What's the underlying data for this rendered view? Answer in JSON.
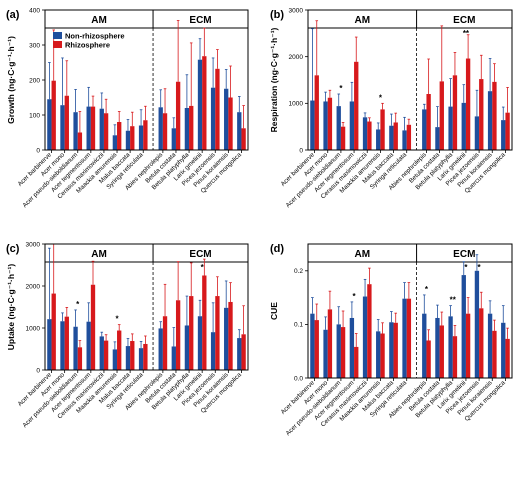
{
  "chart_data": [
    {
      "type": "bar",
      "panel_label": "(a)",
      "ylabel": "Growth (ng·C·g⁻¹·h⁻¹)",
      "ylim": [
        0,
        400
      ],
      "yticks": [
        "0",
        "100",
        "200",
        "300",
        "400"
      ],
      "groups": [
        {
          "label": "AM",
          "start": 0,
          "end": 8
        },
        {
          "label": "ECM",
          "start": 9,
          "end": 16
        }
      ],
      "legend": {
        "entries": [
          "Non-rhizosphere",
          "Rhizosphere"
        ],
        "placement": "top-left"
      },
      "categories": [
        "Acer barbinerve",
        "Acer mono",
        "Acer pseudo-sieboldianum",
        "Acer tegmentosum",
        "Cerasus maximowiczii",
        "Maackia amurensis",
        "Malus baccata",
        "Syringa reticulata",
        "Abies nephrolepis",
        "Betula costata",
        "Betula platyphylla",
        "Larix gmelinii",
        "Picea jezoensis",
        "Pinus koraiensis",
        "Quercus mongolica"
      ],
      "series": [
        {
          "name": "Non-rhizosphere",
          "color": "#1f4e9c",
          "values": [
            145,
            128,
            108,
            124,
            118,
            42,
            55,
            70,
            122,
            62,
            120,
            258,
            178,
            175,
            108
          ],
          "errors": [
            105,
            135,
            65,
            55,
            45,
            30,
            32,
            45,
            50,
            30,
            95,
            60,
            85,
            55,
            45
          ]
        },
        {
          "name": "Rhizosphere",
          "color": "#d7191c",
          "values": [
            198,
            155,
            50,
            124,
            105,
            80,
            68,
            85,
            105,
            195,
            126,
            268,
            232,
            150,
            62
          ],
          "errors": [
            145,
            100,
            60,
            30,
            40,
            30,
            40,
            40,
            70,
            175,
            180,
            80,
            55,
            90,
            65
          ]
        }
      ],
      "significance": []
    },
    {
      "type": "bar",
      "panel_label": "(b)",
      "ylabel": "Respiration (ng·C·g⁻¹·h⁻¹)",
      "ylim": [
        0,
        3000
      ],
      "yticks": [
        "0",
        "1000",
        "2000",
        "3000"
      ],
      "groups": [
        {
          "label": "AM",
          "start": 0,
          "end": 8
        },
        {
          "label": "ECM",
          "start": 9,
          "end": 16
        }
      ],
      "categories": [
        "Acer barbinerve",
        "Acer mono",
        "Acer pseudo-sieboldianum",
        "Acer tegmentosum",
        "Cerasus maximowiczii",
        "Maackia amurensis",
        "Malus baccata",
        "Syringa reticulata",
        "Abies nephrolepis",
        "Betula costata",
        "Betula platyphylla",
        "Larix gmelinii",
        "Picea jezoensis",
        "Pinus koraiensis",
        "Quercus mongolica"
      ],
      "series": [
        {
          "name": "Non-rhizosphere",
          "color": "#1f4e9c",
          "values": [
            1060,
            1040,
            940,
            1040,
            700,
            440,
            520,
            420,
            870,
            490,
            930,
            1010,
            720,
            1260,
            640
          ],
          "errors": [
            1540,
            200,
            260,
            410,
            95,
            140,
            250,
            280,
            110,
            440,
            600,
            390,
            560,
            700,
            280
          ]
        },
        {
          "name": "Rhizosphere",
          "color": "#d7191c",
          "values": [
            1600,
            1120,
            500,
            1890,
            610,
            870,
            590,
            540,
            1200,
            1470,
            1600,
            1960,
            1520,
            1460,
            800
          ],
          "errors": [
            1170,
            160,
            90,
            530,
            80,
            130,
            200,
            120,
            750,
            1190,
            490,
            510,
            510,
            390,
            540
          ]
        }
      ],
      "significance": [
        {
          "category_index": 2,
          "text": "*"
        },
        {
          "category_index": 5,
          "text": "*"
        },
        {
          "category_index": 11,
          "text": "**"
        }
      ]
    },
    {
      "type": "bar",
      "panel_label": "(c)",
      "ylabel": "Uptake (ng·C·g⁻¹·h⁻¹)",
      "ylim": [
        0,
        3000
      ],
      "yticks": [
        "0",
        "1000",
        "2000",
        "3000"
      ],
      "groups": [
        {
          "label": "AM",
          "start": 0,
          "end": 8
        },
        {
          "label": "ECM",
          "start": 9,
          "end": 16
        }
      ],
      "categories": [
        "Acer barbinerve",
        "Acer mono",
        "Acer pseudo-sieboldianum",
        "Acer tegmentosum",
        "Cerasus maximowiczii",
        "Maackia amurensis",
        "Malus baccata",
        "Syringa reticulata",
        "Abies nephrolepis",
        "Betula costata",
        "Betula platyphylla",
        "Larix gmelinii",
        "Picea jezoensis",
        "Pinus koraiensis",
        "Quercus mongolica"
      ],
      "series": [
        {
          "name": "Non-rhizosphere",
          "color": "#1f4e9c",
          "values": [
            1210,
            1160,
            1030,
            1150,
            800,
            490,
            570,
            520,
            990,
            560,
            1060,
            1280,
            900,
            1480,
            760
          ],
          "errors": [
            1690,
            200,
            400,
            450,
            100,
            180,
            180,
            160,
            160,
            450,
            700,
            380,
            700,
            640,
            200
          ]
        },
        {
          "name": "Rhizosphere",
          "color": "#d7191c",
          "values": [
            1820,
            1270,
            540,
            2030,
            700,
            940,
            690,
            620,
            1280,
            1660,
            1760,
            2250,
            1760,
            1620,
            850
          ],
          "errors": [
            1190,
            220,
            160,
            560,
            140,
            140,
            170,
            190,
            760,
            920,
            790,
            390,
            460,
            460,
            680
          ]
        }
      ],
      "significance": [
        {
          "category_index": 2,
          "text": "*"
        },
        {
          "category_index": 5,
          "text": "*"
        },
        {
          "category_index": 11,
          "text": "*"
        }
      ]
    },
    {
      "type": "bar",
      "panel_label": "(d)",
      "ylabel": "CUE",
      "ylim": [
        0,
        0.25
      ],
      "yticks": [
        "0.0",
        "0.1",
        "0.2"
      ],
      "groups": [
        {
          "label": "AM",
          "start": 0,
          "end": 8
        },
        {
          "label": "ECM",
          "start": 9,
          "end": 16
        }
      ],
      "categories": [
        "Acer barbinerve",
        "Acer mono",
        "Acer pseudo-sieboldianum",
        "Acer tegmentosum",
        "Cerasus maximowiczii",
        "Maackia amurensis",
        "Malus baccata",
        "Syringa reticulata",
        "Abies nephrolepis",
        "Betula costata",
        "Betula platyphylla",
        "Larix gmelinii",
        "Picea jezoensis",
        "Pinus koraiensis",
        "Quercus mongolica"
      ],
      "series": [
        {
          "name": "Non-rhizosphere",
          "color": "#1f4e9c",
          "values": [
            0.12,
            0.09,
            0.1,
            0.112,
            0.152,
            0.087,
            0.104,
            0.148,
            0.12,
            0.112,
            0.115,
            0.192,
            0.2,
            0.12,
            0.103
          ],
          "errors": [
            0.03,
            0.024,
            0.033,
            0.03,
            0.032,
            0.022,
            0.02,
            0.03,
            0.035,
            0.024,
            0.02,
            0.025,
            0.03,
            0.024,
            0.032
          ]
        },
        {
          "name": "Rhizosphere",
          "color": "#d7191c",
          "values": [
            0.108,
            0.128,
            0.095,
            0.058,
            0.175,
            0.083,
            0.103,
            0.148,
            0.07,
            0.098,
            0.078,
            0.12,
            0.13,
            0.088,
            0.073
          ],
          "errors": [
            0.03,
            0.034,
            0.03,
            0.025,
            0.03,
            0.02,
            0.018,
            0.03,
            0.02,
            0.025,
            0.02,
            0.03,
            0.03,
            0.02,
            0.02
          ]
        }
      ],
      "significance": [
        {
          "category_index": 3,
          "text": "*"
        },
        {
          "category_index": 8,
          "text": "*"
        },
        {
          "category_index": 10,
          "text": "**"
        },
        {
          "category_index": 11,
          "text": "*"
        },
        {
          "category_index": 12,
          "text": "*"
        }
      ]
    }
  ]
}
